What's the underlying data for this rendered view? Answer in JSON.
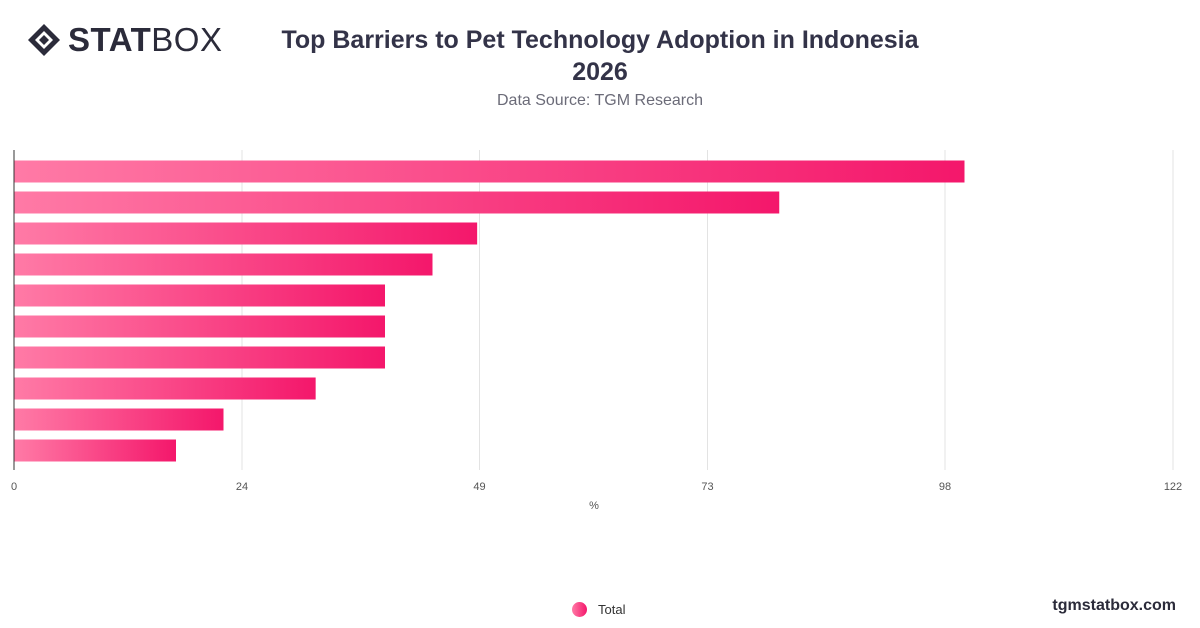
{
  "header": {
    "logo_bold": "STAT",
    "logo_light": "BOX",
    "title_line1": "Top Barriers to Pet Technology Adoption in Indonesia",
    "title_line2": "2026",
    "subtitle": "Data Source: TGM Research"
  },
  "chart_data": {
    "type": "bar",
    "orientation": "horizontal",
    "title": "Top Barriers to Pet Technology Adoption in Indonesia 2026",
    "subtitle": "Data Source: TGM Research",
    "xlabel": "%",
    "ylabel": "",
    "xlim": [
      0,
      122
    ],
    "x_ticks": [
      0,
      24,
      49,
      73,
      98,
      122
    ],
    "grid": "vertical",
    "legend_position": "bottom-center",
    "series": [
      {
        "name": "Total",
        "values": [
          100,
          80.5,
          48.7,
          44,
          39,
          39,
          39,
          31.7,
          22,
          17
        ]
      }
    ],
    "colors": {
      "bar_start": "#ff7aa6",
      "bar_end": "#f4176b",
      "grid": "#e3e3e3",
      "axis": "#333333"
    }
  },
  "legend": {
    "label": "Total"
  },
  "footer": {
    "site": "tgmstatbox.com"
  }
}
